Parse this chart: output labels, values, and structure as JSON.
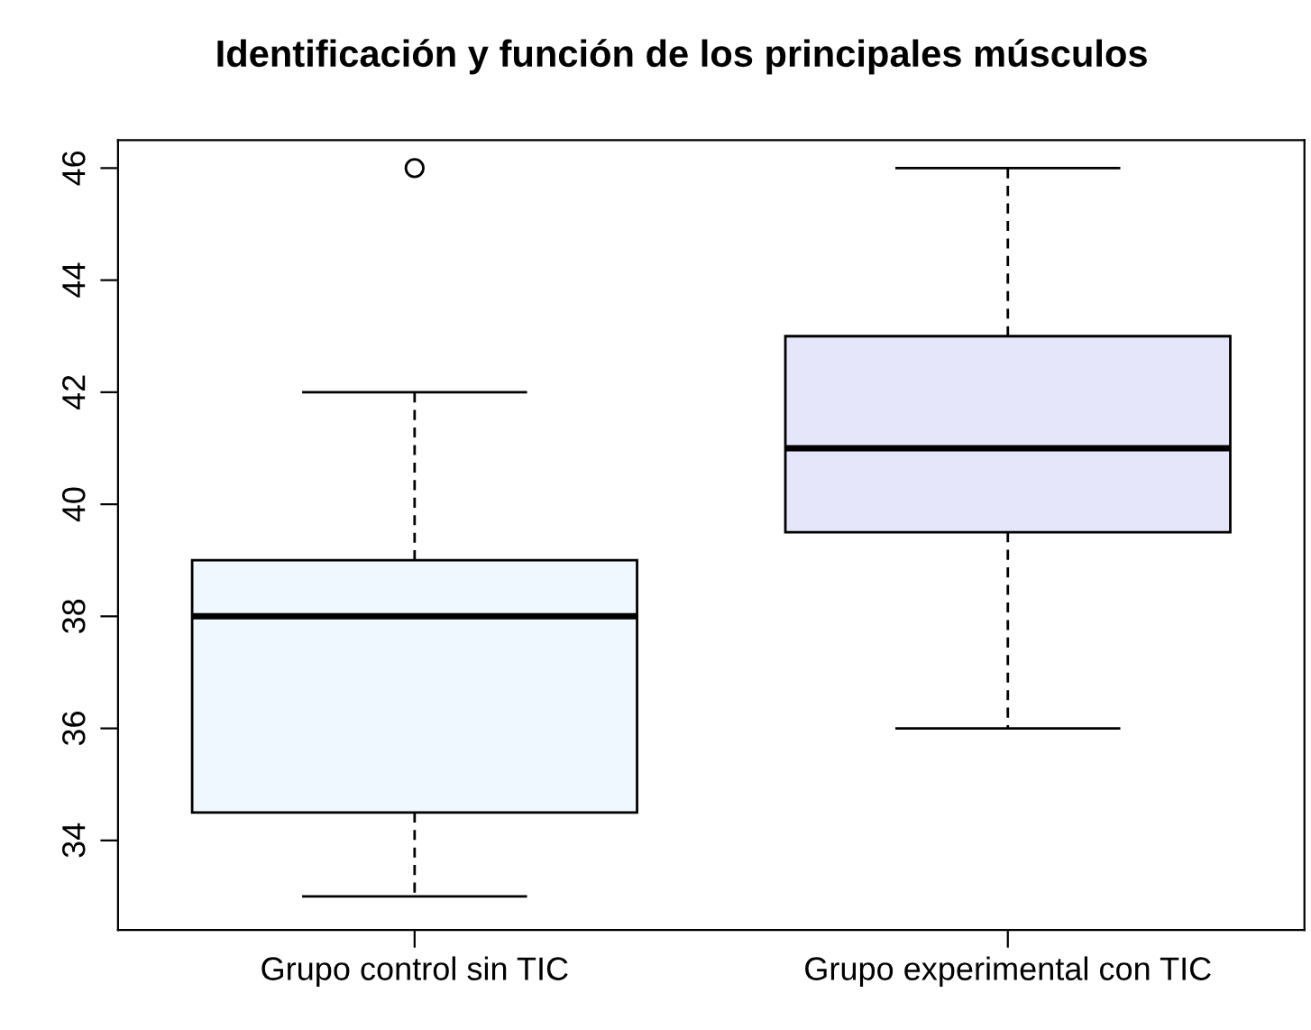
{
  "chart_data": {
    "type": "box",
    "title": "Identificación y función de los principales músculos",
    "categories": [
      "Grupo control sin TIC",
      "Grupo experimental con TIC"
    ],
    "colors": [
      "#f0f8ff",
      "#e6e6fa"
    ],
    "boxes": [
      {
        "low": 33,
        "q1": 34.5,
        "median": 38,
        "q3": 39,
        "high": 42,
        "outliers": [
          46
        ]
      },
      {
        "low": 36,
        "q1": 39.5,
        "median": 41,
        "q3": 43,
        "high": 46
      }
    ],
    "ylim": [
      32.4,
      46.5
    ],
    "yticks": [
      34,
      36,
      38,
      40,
      42,
      44,
      46
    ],
    "grid": false,
    "legend": false
  }
}
